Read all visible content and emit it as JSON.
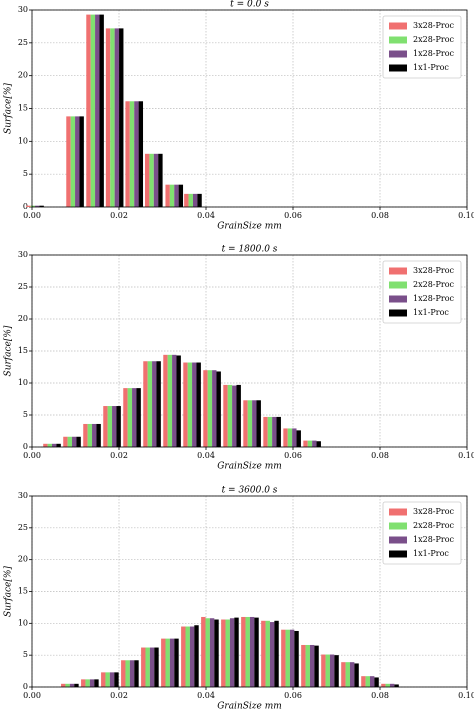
{
  "chart_data": [
    {
      "type": "bar",
      "title": "t = 0.0 s",
      "x_label": "GrainSize mm",
      "y_label": "Surface[%]",
      "x": [
        0.0007,
        0.0099,
        0.0145,
        0.019,
        0.0235,
        0.028,
        0.0327,
        0.037
      ],
      "series": [
        {
          "name": "3x28-Proc",
          "color": "#f07070",
          "values": [
            0.2,
            13.8,
            29.3,
            27.2,
            16.1,
            8.1,
            3.4,
            2.0
          ]
        },
        {
          "name": "2x28-Proc",
          "color": "#80e070",
          "values": [
            0.2,
            13.8,
            29.3,
            27.2,
            16.1,
            8.1,
            3.4,
            2.0
          ]
        },
        {
          "name": "1x28-Proc",
          "color": "#7a4f8a",
          "values": [
            0.2,
            13.8,
            29.3,
            27.2,
            16.1,
            8.1,
            3.4,
            2.0
          ]
        },
        {
          "name": "1x1-Proc",
          "color": "#000000",
          "values": [
            0.2,
            13.8,
            29.3,
            27.2,
            16.1,
            8.1,
            3.4,
            2.0
          ]
        }
      ],
      "xlim": [
        0,
        0.1
      ],
      "ylim": [
        0,
        30
      ],
      "xticks": [
        {
          "value": 0,
          "label": "0.00"
        },
        {
          "value": 0.02,
          "label": "0.02"
        },
        {
          "value": 0.04,
          "label": "0.04"
        },
        {
          "value": 0.06,
          "label": "0.06"
        },
        {
          "value": 0.08,
          "label": "0.08"
        },
        {
          "value": 0.1,
          "label": "0.10"
        }
      ],
      "yticks": [
        0,
        5,
        10,
        15,
        20,
        25,
        30
      ],
      "grid": true,
      "legend": "upper right"
    },
    {
      "type": "bar",
      "title": "t = 1800.0 s",
      "x_label": "GrainSize mm",
      "y_label": "Surface[%]",
      "x": [
        0.0046,
        0.0092,
        0.0138,
        0.0184,
        0.023,
        0.0276,
        0.0322,
        0.0368,
        0.0414,
        0.046,
        0.0506,
        0.0552,
        0.0598,
        0.0644
      ],
      "series": [
        {
          "name": "3x28-Proc",
          "color": "#f07070",
          "values": [
            0.5,
            1.6,
            3.6,
            6.4,
            9.2,
            13.4,
            14.4,
            13.2,
            12.0,
            9.7,
            7.3,
            4.7,
            2.9,
            1.0
          ]
        },
        {
          "name": "2x28-Proc",
          "color": "#80e070",
          "values": [
            0.5,
            1.6,
            3.6,
            6.4,
            9.2,
            13.4,
            14.4,
            13.2,
            12.0,
            9.7,
            7.3,
            4.7,
            2.9,
            1.0
          ]
        },
        {
          "name": "1x28-Proc",
          "color": "#7a4f8a",
          "values": [
            0.5,
            1.6,
            3.6,
            6.4,
            9.2,
            13.4,
            14.4,
            13.2,
            12.0,
            9.6,
            7.3,
            4.7,
            2.9,
            1.0
          ]
        },
        {
          "name": "1x1-Proc",
          "color": "#000000",
          "values": [
            0.5,
            1.6,
            3.6,
            6.4,
            9.2,
            13.4,
            14.3,
            13.2,
            11.8,
            9.7,
            7.3,
            4.7,
            2.6,
            0.9
          ]
        }
      ],
      "xlim": [
        0,
        0.1
      ],
      "ylim": [
        0,
        30
      ],
      "xticks": [
        {
          "value": 0,
          "label": "0.00"
        },
        {
          "value": 0.02,
          "label": "0.02"
        },
        {
          "value": 0.04,
          "label": "0.04"
        },
        {
          "value": 0.06,
          "label": "0.06"
        },
        {
          "value": 0.08,
          "label": "0.08"
        },
        {
          "value": 0.1,
          "label": "0.10"
        }
      ],
      "yticks": [
        0,
        5,
        10,
        15,
        20,
        25,
        30
      ],
      "grid": true,
      "legend": "upper right"
    },
    {
      "type": "bar",
      "title": "t = 3600.0 s",
      "x_label": "GrainSize mm",
      "y_label": "Surface[%]",
      "x": [
        0.0087,
        0.0133,
        0.0179,
        0.0225,
        0.0271,
        0.0317,
        0.0363,
        0.0409,
        0.0455,
        0.0501,
        0.0547,
        0.0593,
        0.0639,
        0.0685,
        0.0731,
        0.0777,
        0.0823
      ],
      "series": [
        {
          "name": "3x28-Proc",
          "color": "#f07070",
          "values": [
            0.5,
            1.2,
            2.3,
            4.2,
            6.2,
            7.6,
            9.5,
            11.0,
            10.6,
            11.0,
            10.4,
            9.0,
            6.6,
            5.1,
            3.9,
            1.7,
            0.5
          ]
        },
        {
          "name": "2x28-Proc",
          "color": "#80e070",
          "values": [
            0.5,
            1.2,
            2.3,
            4.2,
            6.2,
            7.6,
            9.5,
            10.8,
            10.6,
            11.0,
            10.4,
            9.0,
            6.6,
            5.1,
            3.9,
            1.7,
            0.5
          ]
        },
        {
          "name": "1x28-Proc",
          "color": "#7a4f8a",
          "values": [
            0.5,
            1.2,
            2.3,
            4.2,
            6.2,
            7.6,
            9.5,
            10.8,
            10.8,
            11.0,
            10.2,
            9.0,
            6.6,
            5.1,
            3.9,
            1.7,
            0.5
          ]
        },
        {
          "name": "1x1-Proc",
          "color": "#000000",
          "values": [
            0.5,
            1.2,
            2.3,
            4.2,
            6.2,
            7.6,
            9.7,
            10.6,
            10.9,
            10.9,
            10.4,
            8.8,
            6.5,
            5.0,
            3.7,
            1.5,
            0.4
          ]
        }
      ],
      "xlim": [
        0,
        0.1
      ],
      "ylim": [
        0,
        30
      ],
      "xticks": [
        {
          "value": 0,
          "label": "0.00"
        },
        {
          "value": 0.02,
          "label": "0.02"
        },
        {
          "value": 0.04,
          "label": "0.04"
        },
        {
          "value": 0.06,
          "label": "0.06"
        },
        {
          "value": 0.08,
          "label": "0.08"
        },
        {
          "value": 0.1,
          "label": "0.10"
        }
      ],
      "yticks": [
        0,
        5,
        10,
        15,
        20,
        25,
        30
      ],
      "grid": true,
      "legend": "upper right"
    }
  ]
}
